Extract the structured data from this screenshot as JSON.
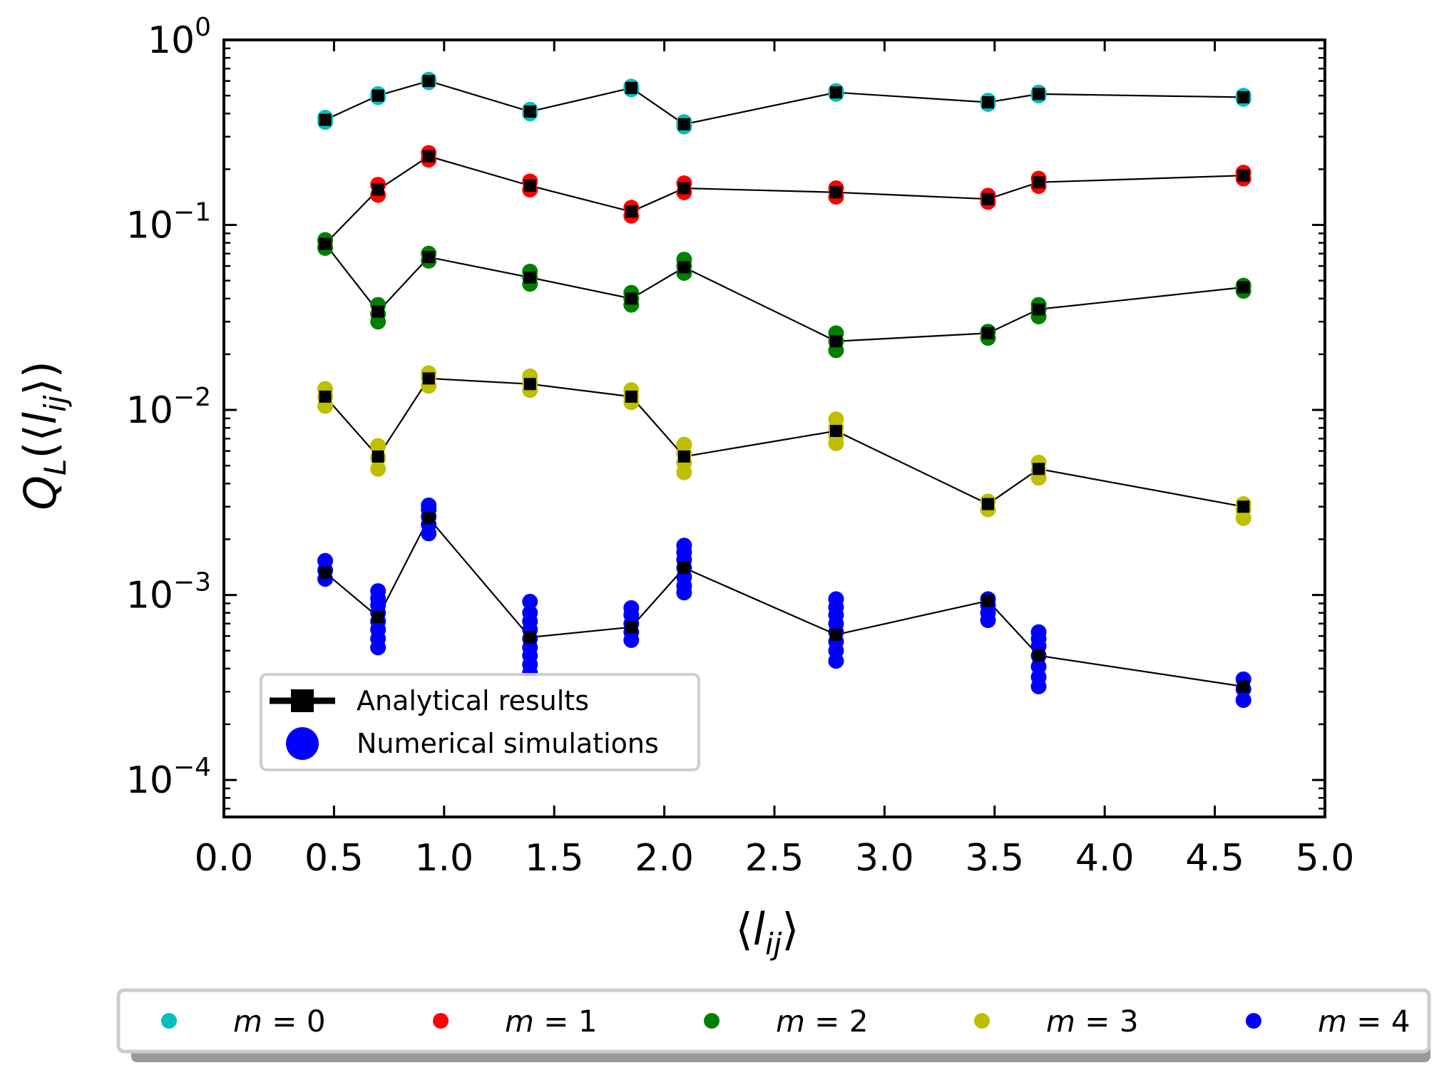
{
  "chart_data": {
    "type": "scatter",
    "xlabel": "⟨l_ij⟩",
    "ylabel": "Q_L(⟨l_ij⟩)",
    "xlabel_parts": {
      "open": "⟨",
      "var": "l",
      "sub": "ij",
      "close": "⟩"
    },
    "ylabel_parts": {
      "main": "Q",
      "sub": "L",
      "open": "(⟨",
      "var": "l",
      "sub2": "ij",
      "close": "⟩)"
    },
    "xlim": [
      0.0,
      5.0
    ],
    "ylim_log10": [
      -4.2,
      0
    ],
    "yscale": "log",
    "x_ticks": [
      "0.0",
      "0.5",
      "1.0",
      "1.5",
      "2.0",
      "2.5",
      "3.0",
      "3.5",
      "4.0",
      "4.5",
      "5.0"
    ],
    "y_ticks": [
      {
        "base": "10",
        "exp": "0",
        "log": 0
      },
      {
        "base": "10",
        "exp": "−1",
        "log": -1
      },
      {
        "base": "10",
        "exp": "−2",
        "log": -2
      },
      {
        "base": "10",
        "exp": "−3",
        "log": -3
      },
      {
        "base": "10",
        "exp": "−4",
        "log": -4
      }
    ],
    "legend_main": [
      {
        "label": "Analytical results",
        "marker": "square-line",
        "color": "#000000"
      },
      {
        "label": "Numerical simulations",
        "marker": "circle",
        "color": "#0000ff"
      }
    ],
    "legend_m": [
      {
        "label": "m = 0",
        "var": "m",
        "value": "0",
        "color": "#00bfbf"
      },
      {
        "label": "m = 1",
        "var": "m",
        "value": "1",
        "color": "#ff0000"
      },
      {
        "label": "m = 2",
        "var": "m",
        "value": "2",
        "color": "#008000"
      },
      {
        "label": "m = 3",
        "var": "m",
        "value": "3",
        "color": "#bfbf00"
      },
      {
        "label": "m = 4",
        "var": "m",
        "value": "4",
        "color": "#0000ff"
      }
    ],
    "x": [
      0.46,
      0.7,
      0.93,
      1.39,
      1.85,
      2.09,
      2.78,
      3.47,
      3.7,
      4.63
    ],
    "series": [
      {
        "name": "m = 0",
        "color": "#00bfbf",
        "analytical": [
          0.37,
          0.5,
          0.6,
          0.41,
          0.55,
          0.35,
          0.52,
          0.46,
          0.51,
          0.49
        ],
        "simulations": [
          [
            0.36,
            0.38
          ],
          [
            0.49,
            0.51
          ],
          [
            0.59,
            0.61
          ],
          [
            0.4,
            0.42
          ],
          [
            0.54,
            0.56
          ],
          [
            0.34,
            0.36
          ],
          [
            0.51,
            0.53
          ],
          [
            0.45,
            0.47
          ],
          [
            0.5,
            0.52
          ],
          [
            0.48,
            0.5
          ]
        ]
      },
      {
        "name": "m = 1",
        "color": "#ff0000",
        "analytical": [
          0.079,
          0.155,
          0.235,
          0.163,
          0.118,
          0.158,
          0.15,
          0.138,
          0.17,
          0.185
        ],
        "simulations": [
          [
            0.076,
            0.082
          ],
          [
            0.145,
            0.165
          ],
          [
            0.225,
            0.245
          ],
          [
            0.155,
            0.172
          ],
          [
            0.112,
            0.124
          ],
          [
            0.15,
            0.168
          ],
          [
            0.142,
            0.158
          ],
          [
            0.133,
            0.144
          ],
          [
            0.162,
            0.178
          ],
          [
            0.178,
            0.192
          ]
        ]
      },
      {
        "name": "m = 2",
        "color": "#008000",
        "analytical": [
          0.079,
          0.034,
          0.067,
          0.052,
          0.04,
          0.059,
          0.0235,
          0.026,
          0.035,
          0.046
        ],
        "simulations": [
          [
            0.075,
            0.083
          ],
          [
            0.03,
            0.033,
            0.037
          ],
          [
            0.064,
            0.07
          ],
          [
            0.048,
            0.052,
            0.056
          ],
          [
            0.037,
            0.04,
            0.043
          ],
          [
            0.055,
            0.06,
            0.065
          ],
          [
            0.021,
            0.0235,
            0.026
          ],
          [
            0.0245,
            0.0265
          ],
          [
            0.032,
            0.035,
            0.037
          ],
          [
            0.044,
            0.047
          ]
        ]
      },
      {
        "name": "m = 3",
        "color": "#bfbf00",
        "analytical": [
          0.0118,
          0.0056,
          0.0148,
          0.0138,
          0.0118,
          0.0056,
          0.0077,
          0.0031,
          0.0048,
          0.003
        ],
        "simulations": [
          [
            0.0105,
            0.0118,
            0.013
          ],
          [
            0.0048,
            0.0055,
            0.0064
          ],
          [
            0.0135,
            0.015,
            0.0158
          ],
          [
            0.0128,
            0.014,
            0.0152
          ],
          [
            0.011,
            0.0118,
            0.0128
          ],
          [
            0.0046,
            0.0052,
            0.0058,
            0.0065
          ],
          [
            0.0066,
            0.0072,
            0.008,
            0.0089
          ],
          [
            0.0029,
            0.0032
          ],
          [
            0.0043,
            0.0047,
            0.0052
          ],
          [
            0.0026,
            0.0029,
            0.0031
          ]
        ]
      },
      {
        "name": "m = 4",
        "color": "#0000ff",
        "analytical": [
          0.00132,
          0.00076,
          0.0026,
          0.00059,
          0.00067,
          0.0014,
          0.00061,
          0.00093,
          0.00047,
          0.00032
        ],
        "simulations": [
          [
            0.00122,
            0.00136,
            0.00153
          ],
          [
            0.00052,
            0.00058,
            0.00065,
            0.00072,
            0.0008,
            0.00088,
            0.00096,
            0.00105
          ],
          [
            0.00215,
            0.0024,
            0.00265,
            0.0029,
            0.00305
          ],
          [
            0.00038,
            0.00042,
            0.00047,
            0.00052,
            0.00058,
            0.00065,
            0.00072,
            0.0008,
            0.00092
          ],
          [
            0.00057,
            0.00063,
            0.0007,
            0.00078,
            0.00085
          ],
          [
            0.00103,
            0.00112,
            0.00125,
            0.0014,
            0.00155,
            0.0017,
            0.00185
          ],
          [
            0.00044,
            0.0005,
            0.00056,
            0.00063,
            0.0007,
            0.00078,
            0.00086,
            0.00095
          ],
          [
            0.00073,
            0.0008,
            0.00088,
            0.00095
          ],
          [
            0.00032,
            0.00036,
            0.00041,
            0.00047,
            0.00053,
            0.00058,
            0.00063
          ],
          [
            0.00027,
            0.00031,
            0.00035
          ]
        ]
      }
    ]
  }
}
